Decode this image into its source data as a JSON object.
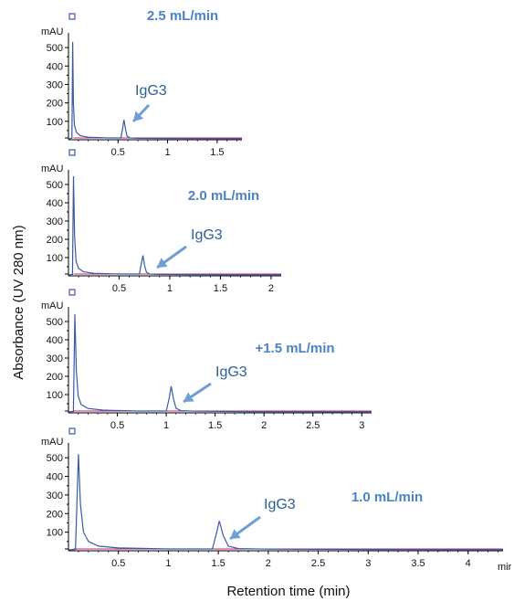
{
  "ylabel": "Absorbance (UV 280 nm)",
  "xlabel": "Retention time (min)",
  "y_unit": "mAU",
  "x_unit_fragment": "mir",
  "colors": {
    "trace": "#3a5aa6",
    "baseline": "#c8287a",
    "label": "#4a83c4",
    "arrow": "#6f9fd4",
    "axis": "#000000"
  },
  "chart_data": [
    {
      "type": "line",
      "title": "2.5 mL/min",
      "annotation": "IgG3",
      "xlim": [
        0,
        1.75
      ],
      "ylim": [
        0,
        550
      ],
      "x_ticks": [
        0.5,
        1,
        1.5
      ],
      "x_tick_labels": [
        "0.5",
        "1",
        "1.5"
      ],
      "y_ticks": [
        100,
        200,
        300,
        400,
        500
      ],
      "y_tick_labels": [
        "100",
        "200",
        "300",
        "400",
        "500"
      ],
      "series": [
        {
          "x": [
            0.0,
            0.035,
            0.042,
            0.05,
            0.06,
            0.08,
            0.12,
            0.2,
            0.4,
            0.53,
            0.545,
            0.56,
            0.575,
            0.59,
            0.62,
            0.7,
            1.0,
            1.5,
            1.75
          ],
          "y": [
            5,
            8,
            530,
            200,
            80,
            40,
            22,
            14,
            10,
            10,
            60,
            108,
            60,
            20,
            10,
            8,
            7,
            6,
            6
          ]
        }
      ]
    },
    {
      "type": "line",
      "title": "2.0 mL/min",
      "annotation": "IgG3",
      "xlim": [
        0,
        2.1
      ],
      "ylim": [
        0,
        550
      ],
      "x_ticks": [
        0.5,
        1,
        1.5,
        2
      ],
      "x_tick_labels": [
        "0.5",
        "1",
        "1.5",
        "2"
      ],
      "y_ticks": [
        100,
        200,
        300,
        400,
        500
      ],
      "y_tick_labels": [
        "100",
        "200",
        "300",
        "400",
        "500"
      ],
      "series": [
        {
          "x": [
            0.0,
            0.04,
            0.05,
            0.06,
            0.075,
            0.1,
            0.15,
            0.25,
            0.5,
            0.7,
            0.72,
            0.735,
            0.75,
            0.77,
            0.8,
            0.9,
            1.2,
            1.6,
            2.1
          ],
          "y": [
            5,
            8,
            545,
            220,
            80,
            40,
            22,
            14,
            10,
            10,
            70,
            112,
            60,
            20,
            10,
            8,
            7,
            6,
            6
          ]
        }
      ]
    },
    {
      "type": "line",
      "title": "+1.5 mL/min",
      "annotation": "IgG3",
      "xlim": [
        0,
        3.1
      ],
      "ylim": [
        0,
        550
      ],
      "x_ticks": [
        0.5,
        1,
        1.5,
        2,
        2.5,
        3
      ],
      "x_tick_labels": [
        "0.5",
        "1",
        "1.5",
        "2",
        "2.5",
        "3"
      ],
      "y_ticks": [
        100,
        200,
        300,
        400,
        500
      ],
      "y_tick_labels": [
        "100",
        "200",
        "300",
        "400",
        "500"
      ],
      "series": [
        {
          "x": [
            0.0,
            0.05,
            0.065,
            0.08,
            0.1,
            0.13,
            0.2,
            0.35,
            0.7,
            1.0,
            1.03,
            1.05,
            1.075,
            1.1,
            1.15,
            1.3,
            1.8,
            2.5,
            3.1
          ],
          "y": [
            5,
            8,
            540,
            230,
            90,
            45,
            24,
            15,
            10,
            10,
            80,
            145,
            75,
            25,
            12,
            9,
            7,
            6,
            6
          ]
        }
      ]
    },
    {
      "type": "line",
      "title": "1.0 mL/min",
      "annotation": "IgG3",
      "xlim": [
        0,
        4.35
      ],
      "ylim": [
        0,
        550
      ],
      "x_ticks": [
        0.5,
        1,
        1.5,
        2,
        2.5,
        3,
        3.5,
        4
      ],
      "x_tick_labels": [
        "0.5",
        "1",
        "1.5",
        "2",
        "2.5",
        "3",
        "3.5",
        "4"
      ],
      "y_ticks": [
        100,
        200,
        300,
        400,
        500
      ],
      "y_tick_labels": [
        "100",
        "200",
        "300",
        "400",
        "500"
      ],
      "series": [
        {
          "x": [
            0.0,
            0.07,
            0.1,
            0.12,
            0.15,
            0.2,
            0.3,
            0.5,
            1.0,
            1.44,
            1.48,
            1.51,
            1.55,
            1.6,
            1.7,
            2.0,
            3.0,
            4.0,
            4.35
          ],
          "y": [
            5,
            8,
            520,
            250,
            100,
            50,
            25,
            15,
            10,
            10,
            90,
            160,
            80,
            25,
            12,
            9,
            7,
            6,
            6
          ]
        }
      ]
    }
  ]
}
